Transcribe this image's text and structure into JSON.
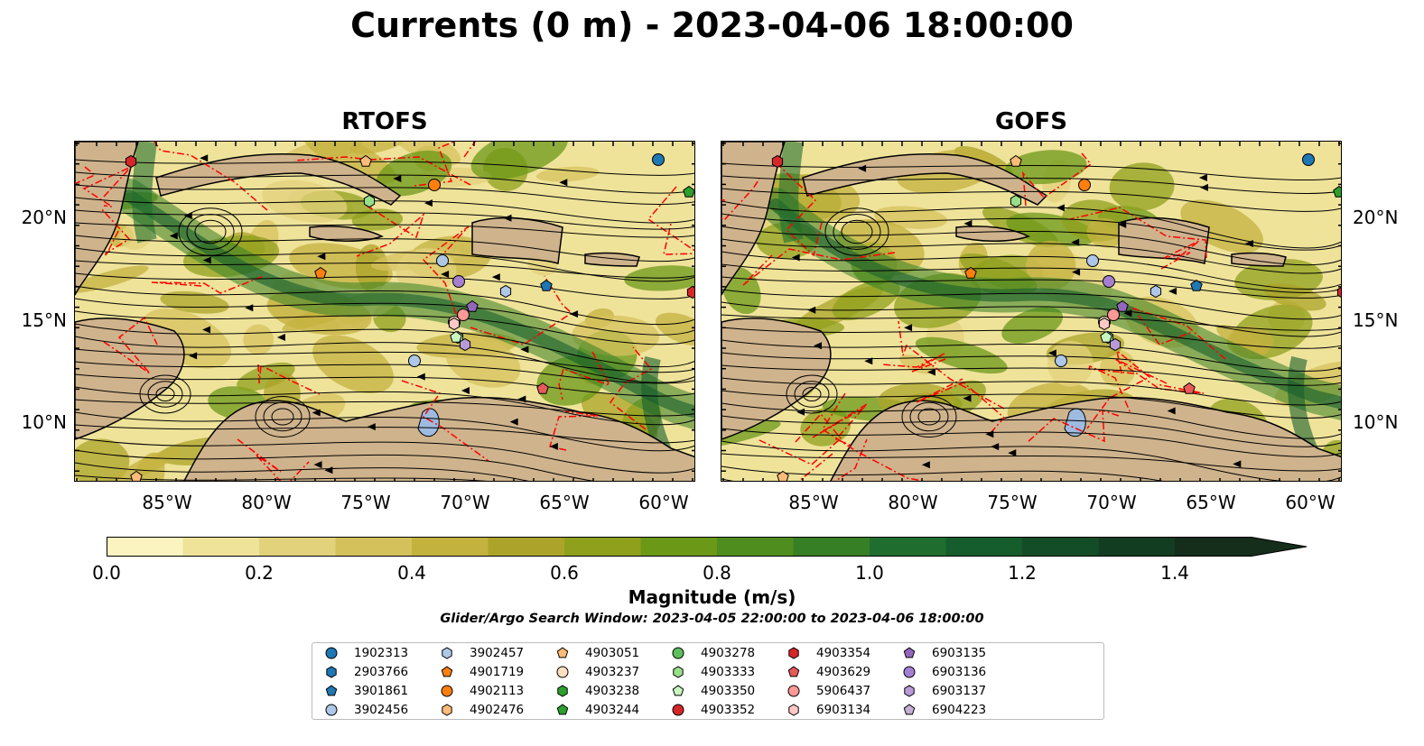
{
  "title": "Currents (0 m) - 2023-04-06 18:00:00",
  "panels": [
    {
      "title": "RTOFS"
    },
    {
      "title": "GOFS"
    }
  ],
  "axes": {
    "lat_labels": [
      "20°N",
      "15°N",
      "10°N"
    ],
    "lon_labels": [
      "85°W",
      "80°W",
      "75°W",
      "70°W",
      "65°W",
      "60°W"
    ]
  },
  "colorbar": {
    "label": "Magnitude (m/s)",
    "ticks": [
      "0.0",
      "0.2",
      "0.4",
      "0.6",
      "0.8",
      "1.0",
      "1.2",
      "1.4"
    ],
    "levels": [
      0.0,
      0.1,
      0.2,
      0.3,
      0.4,
      0.5,
      0.6,
      0.7,
      0.8,
      0.9,
      1.0,
      1.1,
      1.2,
      1.3,
      1.4,
      1.5
    ],
    "colors": [
      "#fbf4c0",
      "#efe39a",
      "#e3d27c",
      "#d5c15c",
      "#c4b23f",
      "#aca42a",
      "#8fa01c",
      "#6c9818",
      "#4f8e1e",
      "#377f24",
      "#1f6e2f",
      "#155d2c",
      "#124d27",
      "#123d21",
      "#142e1b"
    ]
  },
  "search_window": "Glider/Argo Search Window: 2023-04-05 22:00:00 to 2023-04-06 18:00:00",
  "legend": {
    "items": [
      {
        "label": "1902313",
        "color": "#1f77b4",
        "shape": "circle"
      },
      {
        "label": "2903766",
        "color": "#1f77b4",
        "shape": "hexagon"
      },
      {
        "label": "3901861",
        "color": "#1f77b4",
        "shape": "pentagon"
      },
      {
        "label": "3902456",
        "color": "#aec7e8",
        "shape": "circle"
      },
      {
        "label": "3902457",
        "color": "#aec7e8",
        "shape": "hexagon"
      },
      {
        "label": "4901719",
        "color": "#ff7f0e",
        "shape": "pentagon"
      },
      {
        "label": "4902113",
        "color": "#ff7f0e",
        "shape": "circle"
      },
      {
        "label": "4902476",
        "color": "#ffbb78",
        "shape": "hexagon"
      },
      {
        "label": "4903051",
        "color": "#ffbb78",
        "shape": "pentagon"
      },
      {
        "label": "4903237",
        "color": "#ffdfc0",
        "shape": "circle"
      },
      {
        "label": "4903238",
        "color": "#2ca02c",
        "shape": "hexagon"
      },
      {
        "label": "4903244",
        "color": "#2ca02c",
        "shape": "pentagon"
      },
      {
        "label": "4903278",
        "color": "#5cbf5c",
        "shape": "circle"
      },
      {
        "label": "4903333",
        "color": "#98df8a",
        "shape": "hexagon"
      },
      {
        "label": "4903350",
        "color": "#c9f5c0",
        "shape": "pentagon"
      },
      {
        "label": "4903352",
        "color": "#d62728",
        "shape": "circle"
      },
      {
        "label": "4903354",
        "color": "#d62728",
        "shape": "hexagon"
      },
      {
        "label": "4903629",
        "color": "#e8595a",
        "shape": "pentagon"
      },
      {
        "label": "5906437",
        "color": "#ff9896",
        "shape": "circle"
      },
      {
        "label": "6903134",
        "color": "#ffc8c6",
        "shape": "hexagon"
      },
      {
        "label": "6903135",
        "color": "#9467bd",
        "shape": "pentagon"
      },
      {
        "label": "6903136",
        "color": "#a57fd0",
        "shape": "circle"
      },
      {
        "label": "6903137",
        "color": "#b99ad8",
        "shape": "hexagon"
      },
      {
        "label": "6904223",
        "color": "#c5b0d5",
        "shape": "pentagon"
      }
    ]
  },
  "map_colors": {
    "land": "#cfb38c",
    "ocean_low": "#e8d98a",
    "lakes": "#9dbbe0",
    "eez": "#ff0000"
  }
}
